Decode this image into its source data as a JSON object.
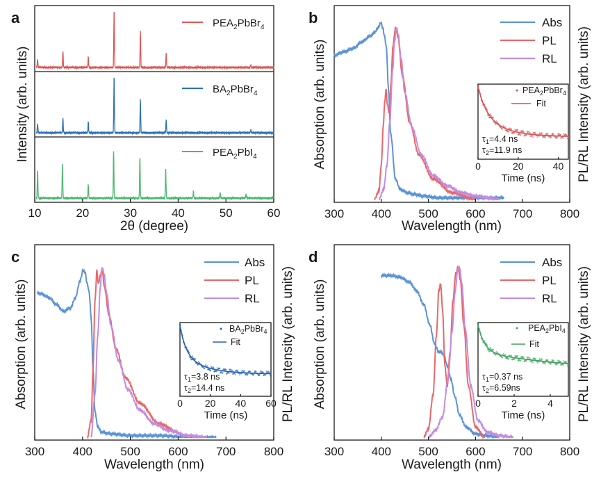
{
  "colors": {
    "abs": "#5b93d6",
    "pl": "#e8676a",
    "rl": "#c48be0",
    "pea_br": "#e05555",
    "ba_br": "#2a72b8",
    "pea_i": "#4cb870",
    "inset_br": "#d94f4f",
    "inset_ba": "#2563b0",
    "inset_i": "#3aa35c"
  },
  "chart_data": [
    {
      "panel": "a",
      "type": "line",
      "xlabel": "2θ (degree)",
      "ylabel": "Intensity (arb. units)",
      "xlim": [
        10,
        60
      ],
      "xticks": [
        10,
        20,
        30,
        40,
        50,
        60
      ],
      "series": [
        {
          "name": "PEA₂PbBr₄",
          "label_main": "PEA",
          "label_sub1": "2",
          "label_mid": "PbBr",
          "label_sub2": "4",
          "color": "#e05555",
          "peaks": [
            [
              10.6,
              0.14
            ],
            [
              15.9,
              0.28
            ],
            [
              21.2,
              0.18
            ],
            [
              26.6,
              1.0
            ],
            [
              32.1,
              0.64
            ],
            [
              37.5,
              0.24
            ],
            [
              55.2,
              0.05
            ]
          ]
        },
        {
          "name": "BA₂PbBr₄",
          "label_main": "BA",
          "label_sub1": "2",
          "label_mid": "PbBr",
          "label_sub2": "4",
          "color": "#2a72b8",
          "peaks": [
            [
              10.6,
              0.16
            ],
            [
              15.9,
              0.25
            ],
            [
              21.2,
              0.19
            ],
            [
              26.6,
              1.0
            ],
            [
              32.1,
              0.6
            ],
            [
              37.5,
              0.23
            ],
            [
              55.2,
              0.05
            ]
          ]
        },
        {
          "name": "PEA₂PbI₄",
          "label_main": "PEA",
          "label_sub1": "2",
          "label_mid": "PbI",
          "label_sub2": "4",
          "color": "#4cb870",
          "peaks": [
            [
              10.6,
              0.5
            ],
            [
              15.8,
              0.62
            ],
            [
              21.2,
              0.24
            ],
            [
              26.5,
              0.84
            ],
            [
              32.0,
              0.72
            ],
            [
              37.4,
              0.52
            ],
            [
              43.2,
              0.12
            ],
            [
              48.8,
              0.1
            ],
            [
              54.2,
              0.07
            ]
          ]
        }
      ]
    },
    {
      "panel": "b",
      "type": "line",
      "xlabel": "Wavelength (nm)",
      "ylabel_left": "Absorption (arb. units)",
      "ylabel_right": "PL/RL Intensity (arb. units)",
      "xlim": [
        300,
        800
      ],
      "xticks": [
        300,
        400,
        500,
        600,
        700,
        800
      ],
      "legend": [
        "Abs",
        "PL",
        "RL"
      ],
      "abs": {
        "x": [
          300,
          320,
          340,
          360,
          375,
          385,
          393,
          399,
          403,
          407,
          411,
          415,
          420,
          430,
          440,
          455,
          470,
          490,
          520,
          560,
          600,
          660
        ],
        "y": [
          0.84,
          0.86,
          0.88,
          0.92,
          0.95,
          0.97,
          1.0,
          1.03,
          1.0,
          0.95,
          0.88,
          0.65,
          0.38,
          0.12,
          0.06,
          0.04,
          0.03,
          0.02,
          0.01,
          0.01,
          0.01,
          0.01
        ]
      },
      "pl": {
        "x": [
          385,
          395,
          400,
          404,
          407,
          410,
          413,
          417,
          420,
          425,
          430,
          435,
          445,
          460,
          480,
          510,
          550,
          600
        ],
        "y": [
          0.0,
          0.05,
          0.2,
          0.42,
          0.56,
          0.64,
          0.55,
          0.5,
          0.66,
          0.9,
          1.0,
          0.95,
          0.72,
          0.45,
          0.26,
          0.12,
          0.04,
          0.0
        ]
      },
      "rl": {
        "x": [
          395,
          405,
          412,
          418,
          424,
          428,
          432,
          436,
          442,
          450,
          465,
          485,
          510,
          540,
          570,
          600,
          650
        ],
        "y": [
          0.0,
          0.06,
          0.2,
          0.45,
          0.75,
          0.92,
          1.0,
          0.96,
          0.82,
          0.62,
          0.42,
          0.26,
          0.14,
          0.08,
          0.04,
          0.02,
          0.0
        ]
      },
      "inset": {
        "legend_main": "PEA",
        "legend_sub1": "2",
        "legend_mid": "PbBr",
        "legend_sub2": "4",
        "fit_label": "Fit",
        "xlabel": "Time (ns)",
        "xlim": [
          0,
          45
        ],
        "xticks": [
          0,
          20,
          40
        ],
        "tau1_label": "τ",
        "tau1_sub": "1",
        "tau1_value": "=4.4 ns",
        "tau2_label": "τ",
        "tau2_sub": "2",
        "tau2_value": "=11.9 ns",
        "tau1": 4.4,
        "tau2": 11.9
      }
    },
    {
      "panel": "c",
      "type": "line",
      "xlabel": "Wavelength (nm)",
      "ylabel_left": "Absorption (arb. units)",
      "ylabel_right": "PL/RL Intensity (arb. units)",
      "xlim": [
        300,
        800
      ],
      "xticks": [
        300,
        400,
        500,
        600,
        700,
        800
      ],
      "legend": [
        "Abs",
        "PL",
        "RL"
      ],
      "abs": {
        "x": [
          305,
          315,
          330,
          345,
          360,
          375,
          385,
          395,
          401,
          405,
          410,
          414,
          418,
          422,
          426,
          432,
          440,
          460,
          500,
          560,
          620,
          680
        ],
        "y": [
          0.85,
          0.84,
          0.82,
          0.78,
          0.74,
          0.76,
          0.82,
          0.92,
          0.98,
          0.97,
          0.9,
          0.85,
          0.7,
          0.4,
          0.15,
          0.06,
          0.03,
          0.02,
          0.01,
          0.01,
          0.0,
          0.0
        ]
      },
      "pl": {
        "x": [
          410,
          418,
          422,
          426,
          430,
          433,
          437,
          441,
          446,
          455,
          470,
          490,
          520,
          560,
          600
        ],
        "y": [
          0.0,
          0.1,
          0.4,
          0.8,
          0.98,
          0.9,
          0.95,
          0.98,
          0.88,
          0.72,
          0.52,
          0.35,
          0.2,
          0.08,
          0.03
        ]
      },
      "rl": {
        "x": [
          418,
          426,
          432,
          437,
          441,
          445,
          450,
          460,
          475,
          495,
          520,
          550,
          580,
          620,
          660
        ],
        "y": [
          0.0,
          0.25,
          0.6,
          0.88,
          1.0,
          0.96,
          0.85,
          0.65,
          0.45,
          0.28,
          0.16,
          0.08,
          0.04,
          0.01,
          0.0
        ]
      },
      "inset": {
        "legend_main": "BA",
        "legend_sub1": "2",
        "legend_mid": "PbBr",
        "legend_sub2": "4",
        "fit_label": "Fit",
        "xlabel": "Time (ns)",
        "xlim": [
          0,
          60
        ],
        "xticks": [
          0,
          20,
          40,
          60
        ],
        "tau1_label": "τ",
        "tau1_sub": "1",
        "tau1_value": "=3.8 ns",
        "tau2_label": "τ",
        "tau2_sub": "2",
        "tau2_value": "=14.4 ns",
        "tau1": 3.8,
        "tau2": 14.4
      }
    },
    {
      "panel": "d",
      "type": "line",
      "xlabel": "Wavelength (nm)",
      "ylabel_left": "Absorption (arb. units)",
      "ylabel_right": "PL/RL Intensity (arb. units)",
      "xlim": [
        300,
        800
      ],
      "xticks": [
        300,
        400,
        500,
        600,
        700,
        800
      ],
      "legend": [
        "Abs",
        "PL",
        "RL"
      ],
      "abs": {
        "x": [
          400,
          420,
          440,
          460,
          475,
          490,
          503,
          513,
          522,
          528,
          533,
          540,
          548,
          556,
          566,
          580,
          600,
          620,
          650
        ],
        "y": [
          0.95,
          0.95,
          0.94,
          0.91,
          0.86,
          0.78,
          0.66,
          0.55,
          0.5,
          0.5,
          0.48,
          0.42,
          0.34,
          0.24,
          0.13,
          0.06,
          0.02,
          0.01,
          0.0
        ]
      },
      "pl": {
        "x": [
          490,
          500,
          510,
          517,
          522,
          526,
          530,
          535,
          540,
          546,
          552,
          558,
          563,
          568,
          575,
          585,
          600,
          620
        ],
        "y": [
          0.0,
          0.05,
          0.25,
          0.6,
          0.86,
          0.9,
          0.75,
          0.42,
          0.3,
          0.5,
          0.8,
          0.96,
          1.0,
          0.92,
          0.66,
          0.3,
          0.06,
          0.0
        ]
      },
      "rl": {
        "x": [
          500,
          515,
          530,
          542,
          550,
          557,
          562,
          566,
          571,
          578,
          590,
          605,
          625,
          650,
          680
        ],
        "y": [
          0.0,
          0.04,
          0.12,
          0.35,
          0.62,
          0.86,
          0.98,
          1.0,
          0.9,
          0.64,
          0.3,
          0.1,
          0.03,
          0.01,
          0.0
        ]
      },
      "inset": {
        "legend_main": "PEA",
        "legend_sub1": "2",
        "legend_mid": "PbI",
        "legend_sub2": "4",
        "fit_label": "Fit",
        "xlabel": "Time (ns)",
        "xlim": [
          0,
          5
        ],
        "xticks": [
          0,
          2,
          4
        ],
        "tau1_label": "τ",
        "tau1_sub": "1",
        "tau1_value": "=0.37 ns",
        "tau2_label": "τ",
        "tau2_sub": "2",
        "tau2_value": "=6.59ns",
        "tau1": 0.37,
        "tau2": 6.59
      }
    }
  ]
}
